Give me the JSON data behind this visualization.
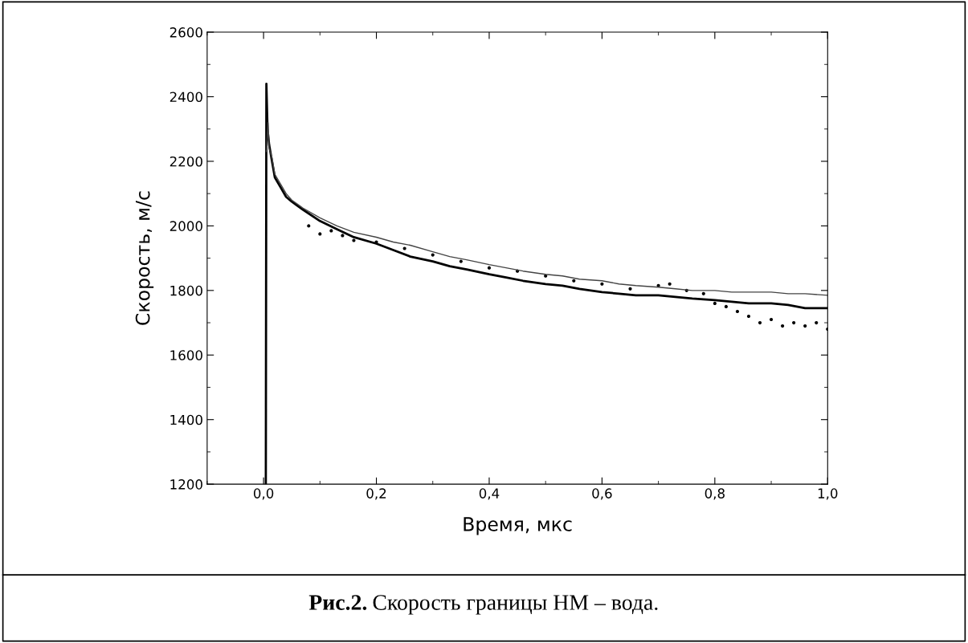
{
  "chart_data": {
    "type": "line",
    "xlabel": "Время, мкс",
    "ylabel": "Скорость, м/с",
    "xlim": [
      -0.1,
      1.0
    ],
    "ylim": [
      1200,
      2600
    ],
    "xticks": [
      {
        "value": 0.0,
        "label": "0,0"
      },
      {
        "value": 0.2,
        "label": "0,2"
      },
      {
        "value": 0.4,
        "label": "0,4"
      },
      {
        "value": 0.6,
        "label": "0,6"
      },
      {
        "value": 0.8,
        "label": "0,8"
      },
      {
        "value": 1.0,
        "label": "1,0"
      }
    ],
    "yticks": [
      1200,
      1400,
      1600,
      1800,
      2000,
      2200,
      2400,
      2600
    ],
    "grid": false,
    "legend": false,
    "marker": "none",
    "series": [
      {
        "color": "#000000",
        "x": [
          0.004,
          0.005,
          0.007,
          0.01,
          0.015,
          0.02,
          0.03,
          0.04,
          0.05,
          0.07,
          0.1,
          0.13,
          0.16,
          0.2,
          0.23,
          0.26,
          0.3,
          0.33,
          0.36,
          0.4,
          0.43,
          0.46,
          0.5,
          0.53,
          0.56,
          0.6,
          0.63,
          0.66,
          0.7,
          0.73,
          0.76,
          0.8,
          0.83,
          0.86,
          0.9,
          0.93,
          0.96,
          1.0
        ],
        "values": [
          1200,
          2440,
          2300,
          2250,
          2200,
          2150,
          2120,
          2090,
          2075,
          2050,
          2015,
          1990,
          1965,
          1945,
          1925,
          1905,
          1890,
          1875,
          1865,
          1850,
          1840,
          1830,
          1820,
          1815,
          1805,
          1795,
          1790,
          1785,
          1785,
          1780,
          1775,
          1770,
          1765,
          1760,
          1760,
          1755,
          1745,
          1745
        ]
      },
      {
        "color": "#444444",
        "x": [
          0.005,
          0.008,
          0.01,
          0.015,
          0.02,
          0.03,
          0.04,
          0.05,
          0.07,
          0.1,
          0.13,
          0.16,
          0.2,
          0.23,
          0.26,
          0.3,
          0.33,
          0.36,
          0.4,
          0.43,
          0.46,
          0.5,
          0.53,
          0.56,
          0.6,
          0.63,
          0.66,
          0.7,
          0.73,
          0.76,
          0.8,
          0.83,
          0.86,
          0.9,
          0.93,
          0.96,
          1.0
        ],
        "values": [
          2230,
          2320,
          2240,
          2210,
          2160,
          2130,
          2100,
          2080,
          2055,
          2025,
          2000,
          1980,
          1965,
          1950,
          1940,
          1920,
          1905,
          1895,
          1880,
          1870,
          1860,
          1850,
          1845,
          1835,
          1830,
          1820,
          1815,
          1810,
          1805,
          1800,
          1800,
          1795,
          1795,
          1795,
          1790,
          1790,
          1785
        ]
      },
      {
        "color": "#000000",
        "type": "scatter",
        "x": [
          0.08,
          0.1,
          0.12,
          0.14,
          0.16,
          0.2,
          0.25,
          0.3,
          0.35,
          0.4,
          0.45,
          0.5,
          0.55,
          0.6,
          0.65,
          0.7,
          0.72,
          0.75,
          0.78,
          0.8,
          0.82,
          0.84,
          0.86,
          0.88,
          0.9,
          0.92,
          0.94,
          0.96,
          0.98,
          1.0
        ],
        "values": [
          2000,
          1975,
          1985,
          1970,
          1955,
          1950,
          1930,
          1910,
          1890,
          1870,
          1860,
          1845,
          1830,
          1820,
          1805,
          1815,
          1820,
          1800,
          1790,
          1760,
          1750,
          1735,
          1720,
          1700,
          1710,
          1690,
          1700,
          1690,
          1700,
          1680
        ]
      }
    ],
    "annotations": [
      "Рис.2.",
      "Скорость границы НМ – вода."
    ]
  }
}
